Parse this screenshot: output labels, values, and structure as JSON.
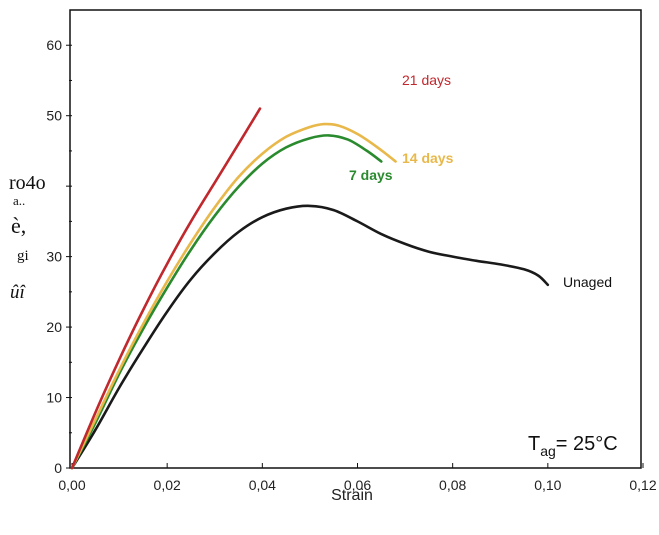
{
  "chart_data": {
    "type": "line",
    "xlabel": "Strain",
    "ylabel_fragments": [
      "ro4o",
      "a..",
      "è,",
      "gi",
      "ûî"
    ],
    "xlim": [
      0,
      0.12
    ],
    "ylim": [
      0,
      65
    ],
    "x_ticks": [
      0,
      0.02,
      0.04,
      0.06,
      0.08,
      0.1,
      0.12
    ],
    "x_tick_labels": [
      "0,00",
      "0,02",
      "0,04",
      "0,06",
      "0,08",
      "0,10",
      "0,12"
    ],
    "y_ticks": [
      0,
      10,
      20,
      30,
      40,
      50,
      60
    ],
    "y_tick_labels": [
      "0",
      "10",
      "20",
      "30",
      "",
      "50",
      "60"
    ],
    "annotation": {
      "text_main": "T",
      "text_sub": "ag",
      "text_rest": "= 25°C"
    },
    "grid": false,
    "series": [
      {
        "name": "21 days",
        "color": "#c0282d",
        "points": [
          [
            0,
            0
          ],
          [
            0.005,
            8
          ],
          [
            0.01,
            15.5
          ],
          [
            0.015,
            22.5
          ],
          [
            0.02,
            29
          ],
          [
            0.025,
            35
          ],
          [
            0.03,
            40.5
          ],
          [
            0.035,
            46
          ],
          [
            0.0395,
            51
          ]
        ]
      },
      {
        "name": "14 days",
        "color": "#e8b84a",
        "points": [
          [
            0,
            0
          ],
          [
            0.005,
            7
          ],
          [
            0.01,
            14
          ],
          [
            0.015,
            20.5
          ],
          [
            0.02,
            26.5
          ],
          [
            0.025,
            32
          ],
          [
            0.03,
            37
          ],
          [
            0.035,
            41.3
          ],
          [
            0.04,
            44.6
          ],
          [
            0.045,
            47
          ],
          [
            0.05,
            48.4
          ],
          [
            0.053,
            48.8
          ],
          [
            0.056,
            48.6
          ],
          [
            0.06,
            47.4
          ],
          [
            0.064,
            45.6
          ],
          [
            0.068,
            43.5
          ]
        ]
      },
      {
        "name": "7 days",
        "color": "#2a8a2e",
        "points": [
          [
            0,
            0
          ],
          [
            0.005,
            6.5
          ],
          [
            0.01,
            13.5
          ],
          [
            0.015,
            19.8
          ],
          [
            0.02,
            25.6
          ],
          [
            0.025,
            31
          ],
          [
            0.03,
            35.8
          ],
          [
            0.035,
            39.9
          ],
          [
            0.04,
            43.2
          ],
          [
            0.045,
            45.5
          ],
          [
            0.05,
            46.8
          ],
          [
            0.054,
            47.2
          ],
          [
            0.058,
            46.6
          ],
          [
            0.062,
            45
          ],
          [
            0.065,
            43.5
          ]
        ]
      },
      {
        "name": "Unaged",
        "color": "#1a1a1a",
        "points": [
          [
            0,
            0
          ],
          [
            0.005,
            5.5
          ],
          [
            0.01,
            11.5
          ],
          [
            0.015,
            17
          ],
          [
            0.02,
            22.2
          ],
          [
            0.025,
            26.8
          ],
          [
            0.03,
            30.5
          ],
          [
            0.035,
            33.5
          ],
          [
            0.04,
            35.6
          ],
          [
            0.045,
            36.8
          ],
          [
            0.05,
            37.2
          ],
          [
            0.055,
            36.6
          ],
          [
            0.06,
            35
          ],
          [
            0.065,
            33.2
          ],
          [
            0.07,
            31.8
          ],
          [
            0.075,
            30.7
          ],
          [
            0.08,
            30
          ],
          [
            0.085,
            29.4
          ],
          [
            0.09,
            28.9
          ],
          [
            0.095,
            28.2
          ],
          [
            0.098,
            27.3
          ],
          [
            0.1,
            26
          ]
        ]
      }
    ]
  }
}
